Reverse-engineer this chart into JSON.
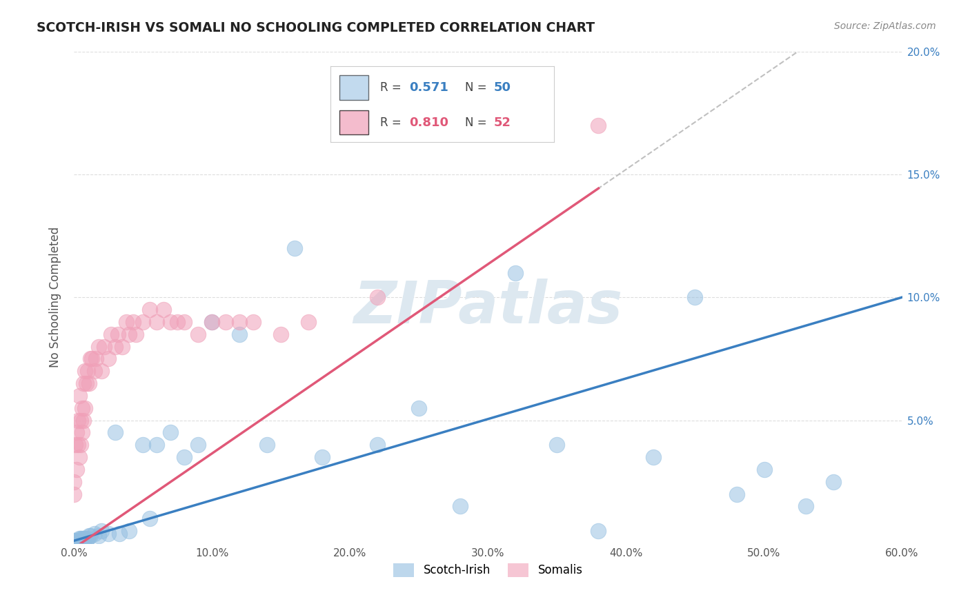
{
  "title": "SCOTCH-IRISH VS SOMALI NO SCHOOLING COMPLETED CORRELATION CHART",
  "source": "Source: ZipAtlas.com",
  "ylabel": "No Schooling Completed",
  "watermark": "ZIPatlas",
  "legend_labels": [
    "Scotch-Irish",
    "Somalis"
  ],
  "scotch_irish_color": "#91bde0",
  "somali_color": "#f0a0b8",
  "scotch_irish_line_color": "#3a7fc1",
  "somali_line_color": "#e05878",
  "dashed_line_color": "#c0c0c0",
  "xlim": [
    0.0,
    0.6
  ],
  "ylim": [
    0.0,
    0.2
  ],
  "background_color": "#ffffff",
  "grid_color": "#dddddd",
  "scotch_irish_R": 0.571,
  "scotch_irish_N": 50,
  "somali_R": 0.81,
  "somali_N": 52,
  "si_x": [
    0.0,
    0.001,
    0.001,
    0.002,
    0.002,
    0.003,
    0.003,
    0.004,
    0.004,
    0.005,
    0.005,
    0.006,
    0.006,
    0.007,
    0.007,
    0.008,
    0.009,
    0.01,
    0.011,
    0.012,
    0.015,
    0.018,
    0.02,
    0.025,
    0.03,
    0.033,
    0.04,
    0.05,
    0.055,
    0.06,
    0.07,
    0.08,
    0.09,
    0.1,
    0.12,
    0.14,
    0.16,
    0.18,
    0.22,
    0.25,
    0.28,
    0.32,
    0.35,
    0.38,
    0.42,
    0.45,
    0.48,
    0.5,
    0.53,
    0.55
  ],
  "si_y": [
    0.001,
    0.0,
    0.001,
    0.001,
    0.0,
    0.001,
    0.0,
    0.001,
    0.002,
    0.001,
    0.002,
    0.001,
    0.002,
    0.001,
    0.002,
    0.002,
    0.001,
    0.002,
    0.003,
    0.003,
    0.004,
    0.003,
    0.005,
    0.004,
    0.045,
    0.004,
    0.005,
    0.04,
    0.01,
    0.04,
    0.045,
    0.035,
    0.04,
    0.09,
    0.085,
    0.04,
    0.12,
    0.035,
    0.04,
    0.055,
    0.015,
    0.11,
    0.04,
    0.005,
    0.035,
    0.1,
    0.02,
    0.03,
    0.015,
    0.025
  ],
  "so_x": [
    0.0,
    0.0,
    0.001,
    0.002,
    0.002,
    0.003,
    0.003,
    0.004,
    0.004,
    0.005,
    0.005,
    0.006,
    0.006,
    0.007,
    0.007,
    0.008,
    0.008,
    0.009,
    0.01,
    0.011,
    0.012,
    0.013,
    0.015,
    0.016,
    0.018,
    0.02,
    0.022,
    0.025,
    0.027,
    0.03,
    0.032,
    0.035,
    0.038,
    0.04,
    0.043,
    0.045,
    0.05,
    0.055,
    0.06,
    0.065,
    0.07,
    0.075,
    0.08,
    0.09,
    0.1,
    0.11,
    0.12,
    0.13,
    0.15,
    0.17,
    0.22,
    0.38
  ],
  "so_y": [
    0.02,
    0.025,
    0.04,
    0.03,
    0.045,
    0.04,
    0.05,
    0.035,
    0.06,
    0.04,
    0.05,
    0.045,
    0.055,
    0.05,
    0.065,
    0.055,
    0.07,
    0.065,
    0.07,
    0.065,
    0.075,
    0.075,
    0.07,
    0.075,
    0.08,
    0.07,
    0.08,
    0.075,
    0.085,
    0.08,
    0.085,
    0.08,
    0.09,
    0.085,
    0.09,
    0.085,
    0.09,
    0.095,
    0.09,
    0.095,
    0.09,
    0.09,
    0.09,
    0.085,
    0.09,
    0.09,
    0.09,
    0.09,
    0.085,
    0.09,
    0.1,
    0.17
  ]
}
